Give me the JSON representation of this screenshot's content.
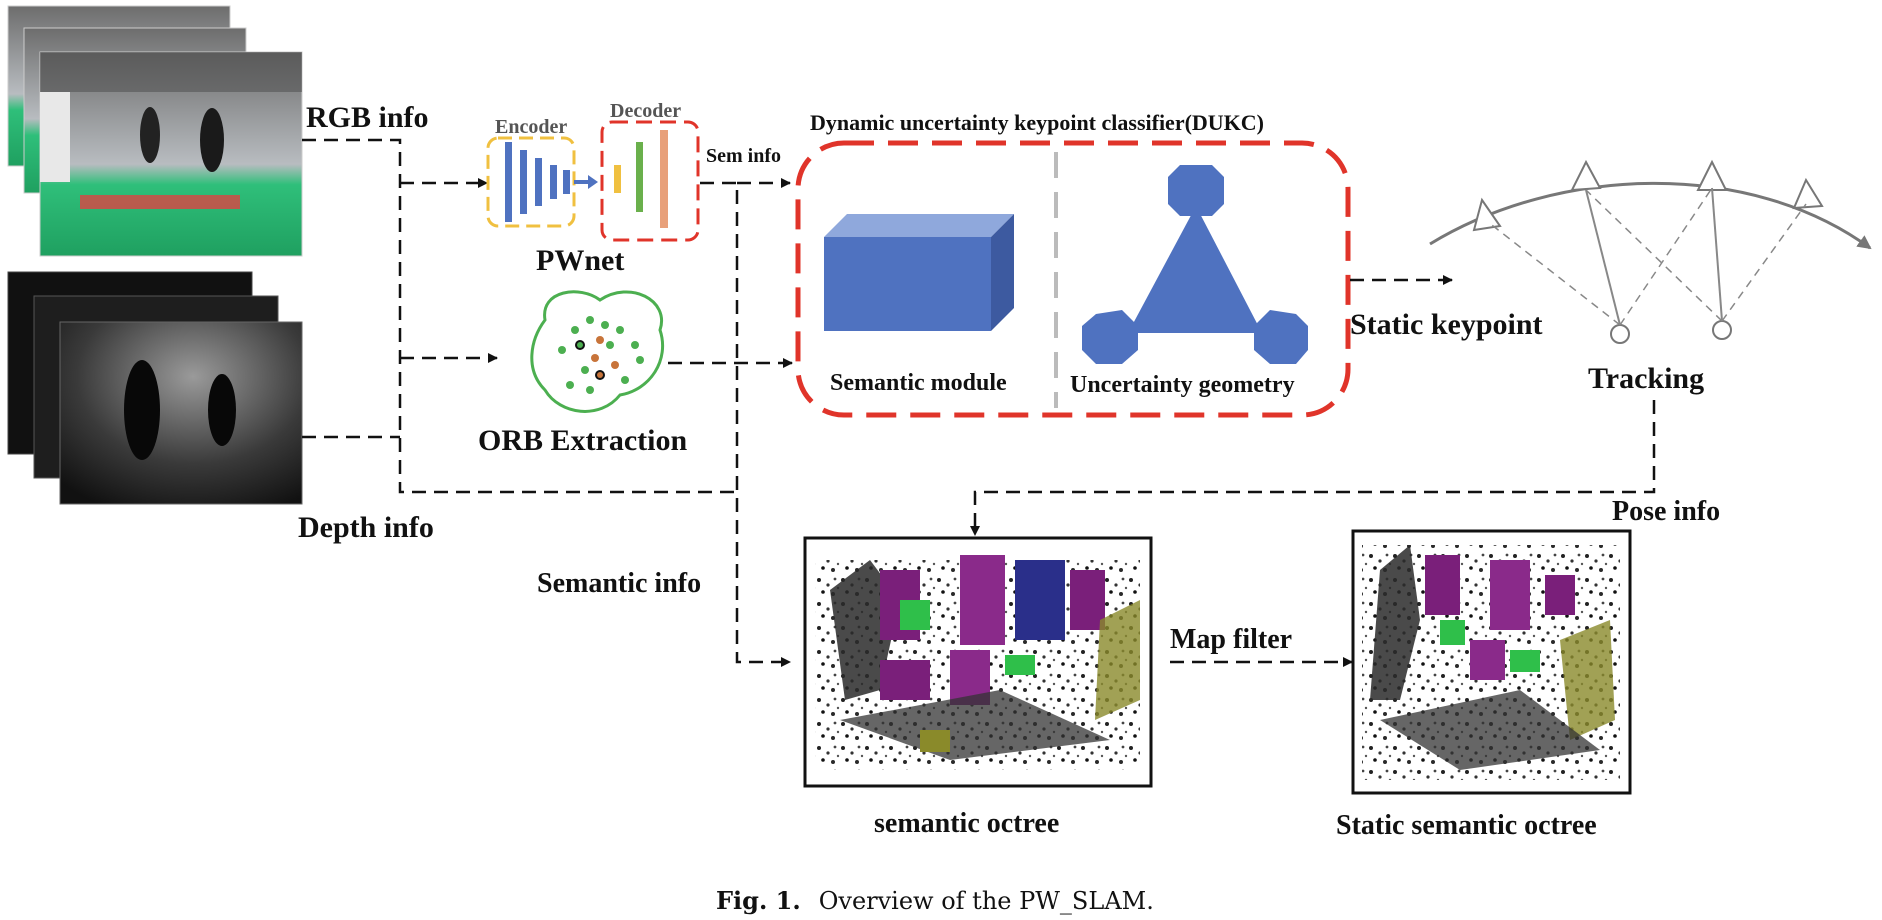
{
  "labels": {
    "rgb_info": "RGB info",
    "depth_info": "Depth info",
    "encoder": "Encoder",
    "decoder": "Decoder",
    "sem_info": "Sem info",
    "pwnet": "PWnet",
    "orb_extraction": "ORB Extraction",
    "dukc_title": "Dynamic uncertainty keypoint classifier(DUKC)",
    "semantic_module": "Semantic module",
    "uncertainty_geometry": "Uncertainty geometry",
    "static_keypoint": "Static keypoint",
    "tracking": "Tracking",
    "pose_info": "Pose info",
    "semantic_info": "Semantic info",
    "map_filter": "Map filter",
    "semantic_octree": "semantic octree",
    "static_semantic_octree": "Static semantic octree"
  },
  "caption": {
    "prefix": "Fig. 1.",
    "text": "Overview of the PW_SLAM."
  },
  "colors": {
    "dukc_border": "#e0342a",
    "encoder_border": "#f0c040",
    "decoder_border": "#e0342a",
    "module_blue": "#4f72c0",
    "orb_green": "#4caf50",
    "tracking_gray": "#777777"
  }
}
